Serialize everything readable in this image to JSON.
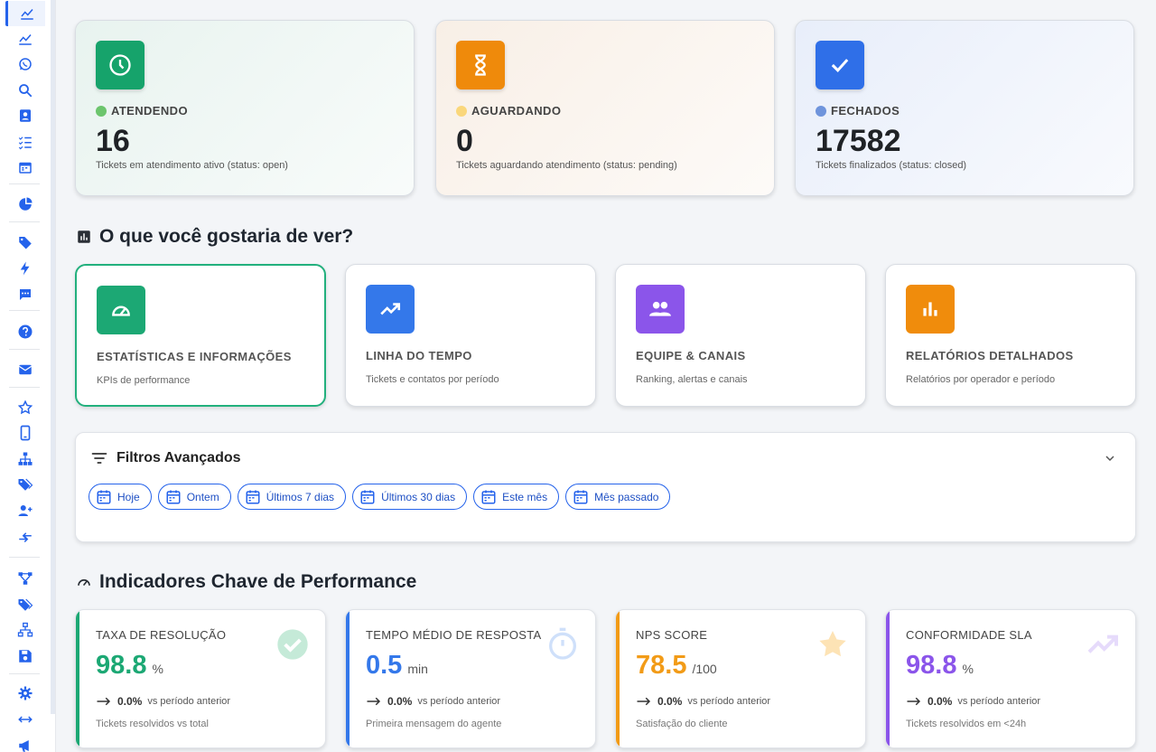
{
  "sidebar": {
    "items": [
      {
        "icon": "chart-line-icon",
        "active": true
      },
      {
        "icon": "chart-line-icon"
      },
      {
        "icon": "whatsapp-icon"
      },
      {
        "icon": "search-icon"
      },
      {
        "icon": "contacts-icon"
      },
      {
        "icon": "checklist-icon"
      },
      {
        "icon": "calendar-icon"
      },
      {
        "icon": "pie-chart-icon"
      },
      {
        "icon": "tag-icon"
      },
      {
        "icon": "lightning-icon"
      },
      {
        "icon": "chat-icon"
      },
      {
        "icon": "help-icon"
      },
      {
        "icon": "mail-icon"
      },
      {
        "icon": "star-icon"
      },
      {
        "icon": "mobile-icon"
      },
      {
        "icon": "hierarchy-icon"
      },
      {
        "icon": "tags-icon"
      },
      {
        "icon": "add-user-icon"
      },
      {
        "icon": "transfer-icon"
      },
      {
        "icon": "flow-icon"
      },
      {
        "icon": "tags-icon"
      },
      {
        "icon": "network-icon"
      },
      {
        "icon": "save-icon"
      },
      {
        "icon": "gear-icon"
      },
      {
        "icon": "horizontal-arrows-icon"
      },
      {
        "icon": "megaphone-icon"
      }
    ]
  },
  "status_cards": [
    {
      "label": "ATENDENDO",
      "count": "16",
      "desc": "Tickets em atendimento ativo (status: open)",
      "icon": "clock-icon",
      "color": "#16a36b",
      "dot": "#6cc56d",
      "bg": "#e8f3ef"
    },
    {
      "label": "AGUARDANDO",
      "count": "0",
      "desc": "Tickets aguardando atendimento (status: pending)",
      "icon": "hourglass-icon",
      "color": "#ef8a0b",
      "dot": "#fad77b",
      "bg": "#f8efe6"
    },
    {
      "label": "FECHADOS",
      "count": "17582",
      "desc": "Tickets finalizados (status: closed)",
      "icon": "check-icon",
      "color": "#2f6fe8",
      "dot": "#6f94dc",
      "bg": "#e8eefa"
    }
  ],
  "views": {
    "title": "O que você gostaria de ver?",
    "cards": [
      {
        "title": "ESTATÍSTICAS E INFORMAÇÕES",
        "sub": "KPIs de performance",
        "icon": "speedometer-icon",
        "color": "#1ca874",
        "selected": true
      },
      {
        "title": "LINHA DO TEMPO",
        "sub": "Tickets e contatos por período",
        "icon": "trending-up-icon",
        "color": "#3478ea"
      },
      {
        "title": "EQUIPE & CANAIS",
        "sub": "Ranking, alertas e canais",
        "icon": "people-icon",
        "color": "#8b55ea"
      },
      {
        "title": "RELATÓRIOS DETALHADOS",
        "sub": "Relatórios por operador e período",
        "icon": "bar-chart-icon",
        "color": "#f08c0c"
      }
    ]
  },
  "filters": {
    "title": "Filtros Avançados",
    "chips": [
      "Hoje",
      "Ontem",
      "Últimos 7 dias",
      "Últimos 30 dias",
      "Este mês",
      "Mês passado"
    ]
  },
  "kpis": {
    "title": "Indicadores Chave de Performance",
    "cards": [
      {
        "title": "TAXA DE RESOLUÇÃO",
        "value": "98.8",
        "unit": "%",
        "change": "0.0%",
        "vs": "vs período anterior",
        "foot": "Tickets resolvidos vs total",
        "color": "#1ca874",
        "icon": "check-circle-icon"
      },
      {
        "title": "TEMPO MÉDIO DE RESPOSTA",
        "value": "0.5",
        "unit": "min",
        "change": "0.0%",
        "vs": "vs período anterior",
        "foot": "Primeira mensagem do agente",
        "color": "#3478ea",
        "icon": "timer-icon"
      },
      {
        "title": "NPS SCORE",
        "value": "78.5",
        "unit": "/100",
        "change": "0.0%",
        "vs": "vs período anterior",
        "foot": "Satisfação do cliente",
        "color": "#f29b17",
        "icon": "star-icon"
      },
      {
        "title": "CONFORMIDADE SLA",
        "value": "98.8",
        "unit": "%",
        "change": "0.0%",
        "vs": "vs período anterior",
        "foot": "Tickets resolvidos em <24h",
        "color": "#8b55ea",
        "icon": "trending-up-icon"
      }
    ]
  }
}
